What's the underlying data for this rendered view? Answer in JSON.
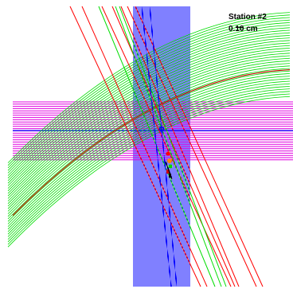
{
  "station": {
    "title": "Station #2",
    "scale": "0.10 cm"
  },
  "colors": {
    "blue": "#0000ff",
    "magenta": "#e000e0",
    "green": "#00dd00",
    "red": "#ff0000",
    "dark_red": "#cc0000",
    "orange": "#ff8800",
    "black": "#000000",
    "background": "#ffffff"
  }
}
